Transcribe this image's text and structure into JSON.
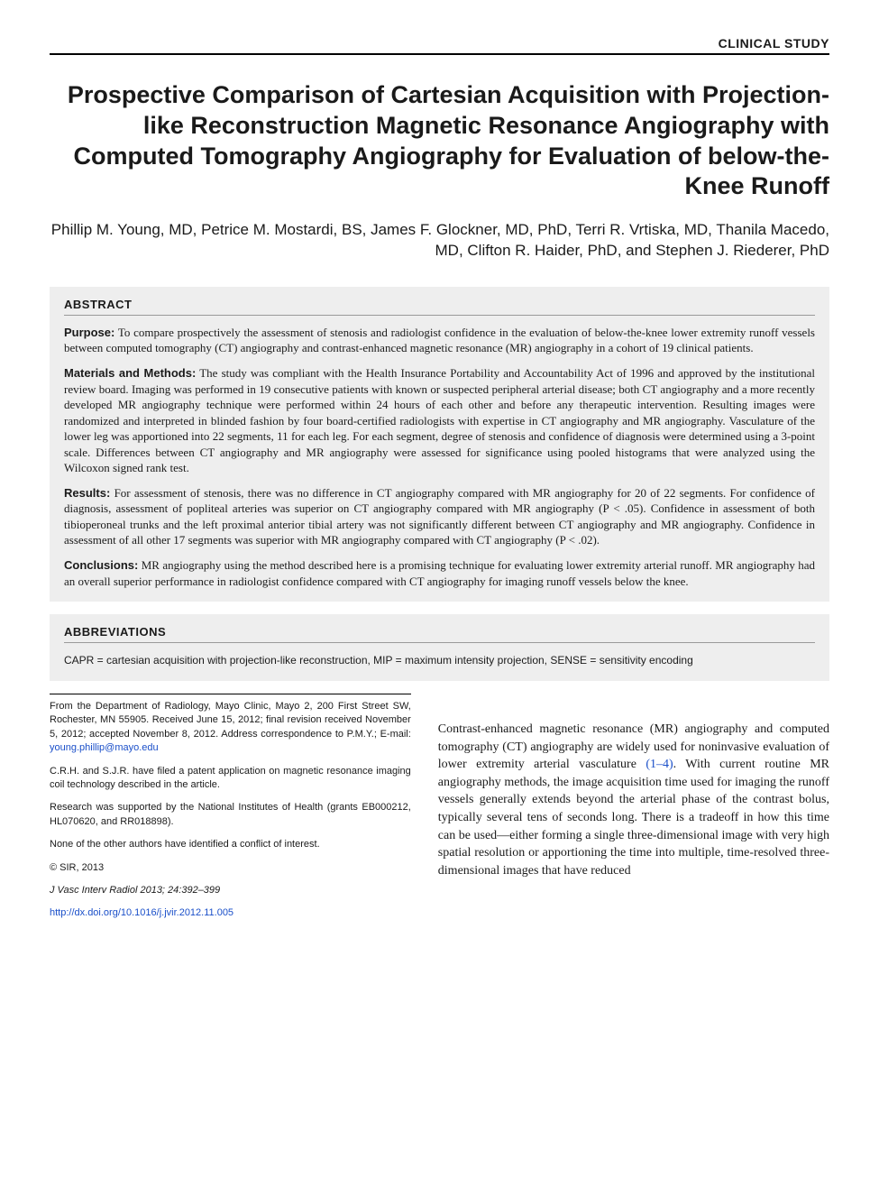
{
  "header": {
    "label": "CLINICAL STUDY"
  },
  "title": "Prospective Comparison of Cartesian Acquisition with Projection-like Reconstruction Magnetic Resonance Angiography with Computed Tomography Angiography for Evaluation of below-the-Knee Runoff",
  "authors": "Phillip M. Young, MD, Petrice M. Mostardi, BS, James F. Glockner, MD, PhD, Terri R. Vrtiska, MD, Thanila Macedo, MD, Clifton R. Haider, PhD, and Stephen J. Riederer, PhD",
  "abstract": {
    "heading": "ABSTRACT",
    "purpose_label": "Purpose:",
    "purpose": " To compare prospectively the assessment of stenosis and radiologist confidence in the evaluation of below-the-knee lower extremity runoff vessels between computed tomography (CT) angiography and contrast-enhanced magnetic resonance (MR) angiography in a cohort of 19 clinical patients.",
    "methods_label": "Materials and Methods:",
    "methods": " The study was compliant with the Health Insurance Portability and Accountability Act of 1996 and approved by the institutional review board. Imaging was performed in 19 consecutive patients with known or suspected peripheral arterial disease; both CT angiography and a more recently developed MR angiography technique were performed within 24 hours of each other and before any therapeutic intervention. Resulting images were randomized and interpreted in blinded fashion by four board-certified radiologists with expertise in CT angiography and MR angiography. Vasculature of the lower leg was apportioned into 22 segments, 11 for each leg. For each segment, degree of stenosis and confidence of diagnosis were determined using a 3-point scale. Differences between CT angiography and MR angiography were assessed for significance using pooled histograms that were analyzed using the Wilcoxon signed rank test.",
    "results_label": "Results:",
    "results": " For assessment of stenosis, there was no difference in CT angiography compared with MR angiography for 20 of 22 segments. For confidence of diagnosis, assessment of popliteal arteries was superior on CT angiography compared with MR angiography (P < .05). Confidence in assessment of both tibioperoneal trunks and the left proximal anterior tibial artery was not significantly different between CT angiography and MR angiography. Confidence in assessment of all other 17 segments was superior with MR angiography compared with CT angiography (P < .02).",
    "conclusions_label": "Conclusions:",
    "conclusions": " MR angiography using the method described here is a promising technique for evaluating lower extremity arterial runoff. MR angiography had an overall superior performance in radiologist confidence compared with CT angiography for imaging runoff vessels below the knee."
  },
  "abbreviations": {
    "heading": "ABBREVIATIONS",
    "text": "CAPR = cartesian acquisition with projection-like reconstruction, MIP = maximum intensity projection, SENSE = sensitivity encoding"
  },
  "footer": {
    "affiliation_pre": "From the Department of Radiology, Mayo Clinic, Mayo 2, 200 First Street SW, Rochester, MN 55905. Received June 15, 2012; final revision received November 5, 2012; accepted November 8, 2012. Address correspondence to P.M.Y.; E-mail: ",
    "email": "young.phillip@mayo.edu",
    "coi1": "C.R.H. and S.J.R. have filed a patent application on magnetic resonance imaging coil technology described in the article.",
    "funding": "Research was supported by the National Institutes of Health (grants EB000212, HL070620, and RR018898).",
    "coi2": "None of the other authors have identified a conflict of interest.",
    "copyright": "© SIR, 2013",
    "citation": "J Vasc Interv Radiol 2013; 24:392–399",
    "doi": "http://dx.doi.org/10.1016/j.jvir.2012.11.005"
  },
  "intro": {
    "text_pre": "Contrast-enhanced magnetic resonance (MR) angiography and computed tomography (CT) angiography are widely used for noninvasive evaluation of lower extremity arterial vasculature ",
    "cite": "(1–4)",
    "text_post": ". With current routine MR angiography methods, the image acquisition time used for imaging the runoff vessels generally extends beyond the arterial phase of the contrast bolus, typically several tens of seconds long. There is a tradeoff in how this time can be used—either forming a single three-dimensional image with very high spatial resolution or apportioning the time into multiple, time-resolved three-dimensional images that have reduced"
  },
  "colors": {
    "background": "#ffffff",
    "section_bg": "#eeeeee",
    "text": "#1a1a1a",
    "link": "#1a4fc9",
    "rule": "#000000",
    "subrule": "#999999"
  }
}
